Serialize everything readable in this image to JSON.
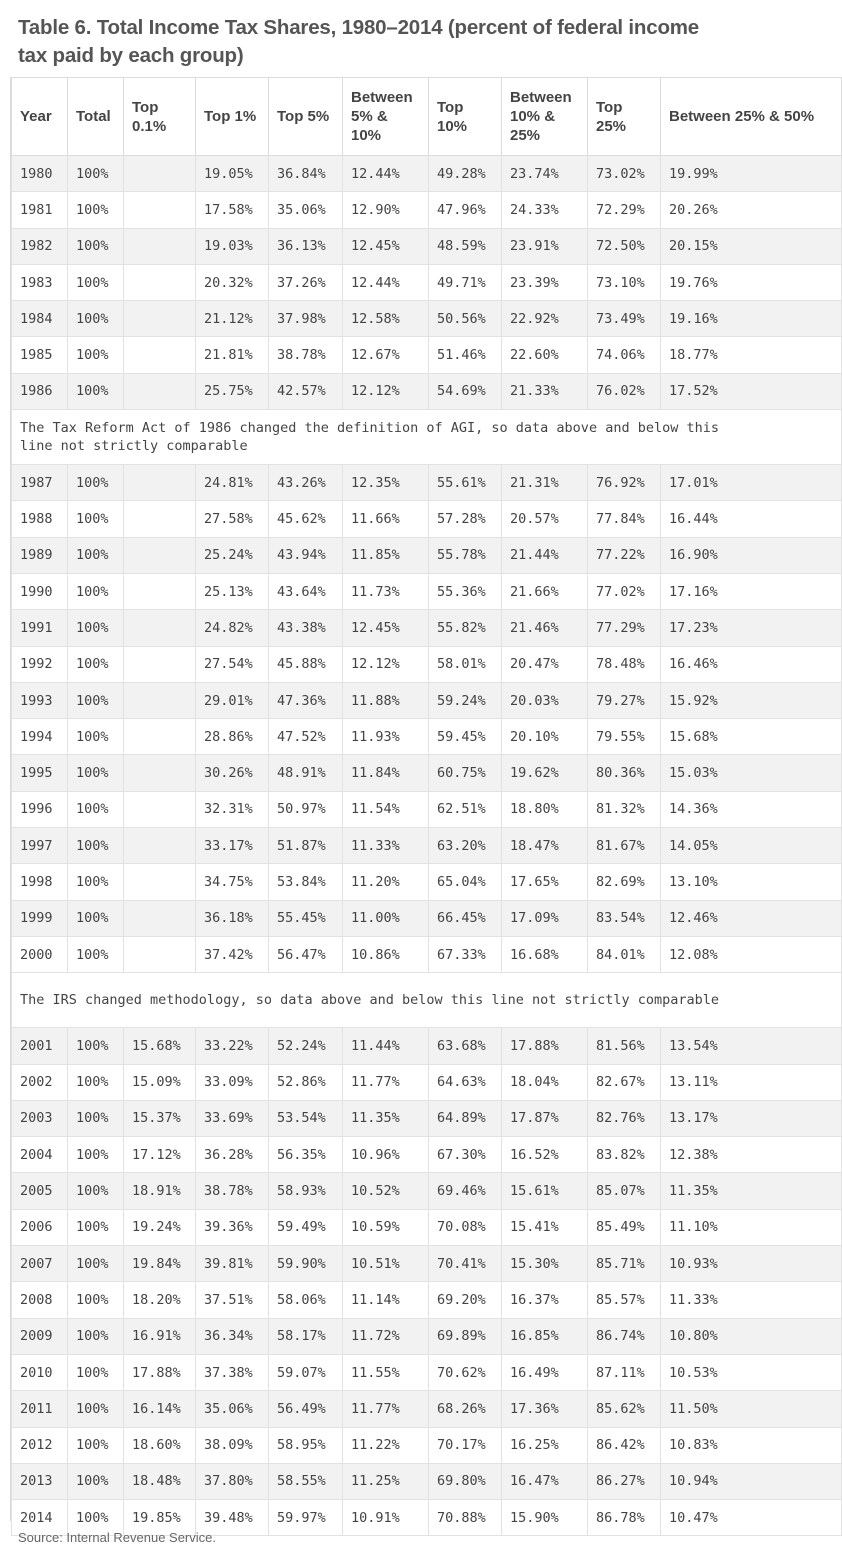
{
  "title": "Table 6. Total Income Tax Shares, 1980–2014 (percent of federal income tax paid by each group)",
  "columns": [
    "Year",
    "Total",
    "Top 0.1%",
    "Top 1%",
    "Top 5%",
    "Between 5% & 10%",
    "Top 10%",
    "Between 10% & 25%",
    "Top 25%",
    "Between 25% & 50%"
  ],
  "rows": [
    {
      "type": "data",
      "cells": [
        "1980",
        "100%",
        "",
        "19.05%",
        "36.84%",
        "12.44%",
        "49.28%",
        "23.74%",
        "73.02%",
        "19.99%"
      ]
    },
    {
      "type": "data",
      "cells": [
        "1981",
        "100%",
        "",
        "17.58%",
        "35.06%",
        "12.90%",
        "47.96%",
        "24.33%",
        "72.29%",
        "20.26%"
      ]
    },
    {
      "type": "data",
      "cells": [
        "1982",
        "100%",
        "",
        "19.03%",
        "36.13%",
        "12.45%",
        "48.59%",
        "23.91%",
        "72.50%",
        "20.15%"
      ]
    },
    {
      "type": "data",
      "cells": [
        "1983",
        "100%",
        "",
        "20.32%",
        "37.26%",
        "12.44%",
        "49.71%",
        "23.39%",
        "73.10%",
        "19.76%"
      ]
    },
    {
      "type": "data",
      "cells": [
        "1984",
        "100%",
        "",
        "21.12%",
        "37.98%",
        "12.58%",
        "50.56%",
        "22.92%",
        "73.49%",
        "19.16%"
      ]
    },
    {
      "type": "data",
      "cells": [
        "1985",
        "100%",
        "",
        "21.81%",
        "38.78%",
        "12.67%",
        "51.46%",
        "22.60%",
        "74.06%",
        "18.77%"
      ]
    },
    {
      "type": "data",
      "cells": [
        "1986",
        "100%",
        "",
        "25.75%",
        "42.57%",
        "12.12%",
        "54.69%",
        "21.33%",
        "76.02%",
        "17.52%"
      ]
    },
    {
      "type": "note",
      "text": "The Tax Reform Act of 1986 changed the definition of AGI, so data above and below this line not strictly comparable"
    },
    {
      "type": "data",
      "cells": [
        "1987",
        "100%",
        "",
        "24.81%",
        "43.26%",
        "12.35%",
        "55.61%",
        "21.31%",
        "76.92%",
        "17.01%"
      ]
    },
    {
      "type": "data",
      "cells": [
        "1988",
        "100%",
        "",
        "27.58%",
        "45.62%",
        "11.66%",
        "57.28%",
        "20.57%",
        "77.84%",
        "16.44%"
      ]
    },
    {
      "type": "data",
      "cells": [
        "1989",
        "100%",
        "",
        "25.24%",
        "43.94%",
        "11.85%",
        "55.78%",
        "21.44%",
        "77.22%",
        "16.90%"
      ]
    },
    {
      "type": "data",
      "cells": [
        "1990",
        "100%",
        "",
        "25.13%",
        "43.64%",
        "11.73%",
        "55.36%",
        "21.66%",
        "77.02%",
        "17.16%"
      ]
    },
    {
      "type": "data",
      "cells": [
        "1991",
        "100%",
        "",
        "24.82%",
        "43.38%",
        "12.45%",
        "55.82%",
        "21.46%",
        "77.29%",
        "17.23%"
      ]
    },
    {
      "type": "data",
      "cells": [
        "1992",
        "100%",
        "",
        "27.54%",
        "45.88%",
        "12.12%",
        "58.01%",
        "20.47%",
        "78.48%",
        "16.46%"
      ]
    },
    {
      "type": "data",
      "cells": [
        "1993",
        "100%",
        "",
        "29.01%",
        "47.36%",
        "11.88%",
        "59.24%",
        "20.03%",
        "79.27%",
        "15.92%"
      ]
    },
    {
      "type": "data",
      "cells": [
        "1994",
        "100%",
        "",
        "28.86%",
        "47.52%",
        "11.93%",
        "59.45%",
        "20.10%",
        "79.55%",
        "15.68%"
      ]
    },
    {
      "type": "data",
      "cells": [
        "1995",
        "100%",
        "",
        "30.26%",
        "48.91%",
        "11.84%",
        "60.75%",
        "19.62%",
        "80.36%",
        "15.03%"
      ]
    },
    {
      "type": "data",
      "cells": [
        "1996",
        "100%",
        "",
        "32.31%",
        "50.97%",
        "11.54%",
        "62.51%",
        "18.80%",
        "81.32%",
        "14.36%"
      ]
    },
    {
      "type": "data",
      "cells": [
        "1997",
        "100%",
        "",
        "33.17%",
        "51.87%",
        "11.33%",
        "63.20%",
        "18.47%",
        "81.67%",
        "14.05%"
      ]
    },
    {
      "type": "data",
      "cells": [
        "1998",
        "100%",
        "",
        "34.75%",
        "53.84%",
        "11.20%",
        "65.04%",
        "17.65%",
        "82.69%",
        "13.10%"
      ]
    },
    {
      "type": "data",
      "cells": [
        "1999",
        "100%",
        "",
        "36.18%",
        "55.45%",
        "11.00%",
        "66.45%",
        "17.09%",
        "83.54%",
        "12.46%"
      ]
    },
    {
      "type": "data",
      "cells": [
        "2000",
        "100%",
        "",
        "37.42%",
        "56.47%",
        "10.86%",
        "67.33%",
        "16.68%",
        "84.01%",
        "12.08%"
      ]
    },
    {
      "type": "note",
      "text": "The IRS changed methodology, so data above and below this line not strictly comparable"
    },
    {
      "type": "data",
      "cells": [
        "2001",
        "100%",
        "15.68%",
        "33.22%",
        "52.24%",
        "11.44%",
        "63.68%",
        "17.88%",
        "81.56%",
        "13.54%"
      ]
    },
    {
      "type": "data",
      "cells": [
        "2002",
        "100%",
        "15.09%",
        "33.09%",
        "52.86%",
        "11.77%",
        "64.63%",
        "18.04%",
        "82.67%",
        "13.11%"
      ]
    },
    {
      "type": "data",
      "cells": [
        "2003",
        "100%",
        "15.37%",
        "33.69%",
        "53.54%",
        "11.35%",
        "64.89%",
        "17.87%",
        "82.76%",
        "13.17%"
      ]
    },
    {
      "type": "data",
      "cells": [
        "2004",
        "100%",
        "17.12%",
        "36.28%",
        "56.35%",
        "10.96%",
        "67.30%",
        "16.52%",
        "83.82%",
        "12.38%"
      ]
    },
    {
      "type": "data",
      "cells": [
        "2005",
        "100%",
        "18.91%",
        "38.78%",
        "58.93%",
        "10.52%",
        "69.46%",
        "15.61%",
        "85.07%",
        "11.35%"
      ]
    },
    {
      "type": "data",
      "cells": [
        "2006",
        "100%",
        "19.24%",
        "39.36%",
        "59.49%",
        "10.59%",
        "70.08%",
        "15.41%",
        "85.49%",
        "11.10%"
      ]
    },
    {
      "type": "data",
      "cells": [
        "2007",
        "100%",
        "19.84%",
        "39.81%",
        "59.90%",
        "10.51%",
        "70.41%",
        "15.30%",
        "85.71%",
        "10.93%"
      ]
    },
    {
      "type": "data",
      "cells": [
        "2008",
        "100%",
        "18.20%",
        "37.51%",
        "58.06%",
        "11.14%",
        "69.20%",
        "16.37%",
        "85.57%",
        "11.33%"
      ]
    },
    {
      "type": "data",
      "cells": [
        "2009",
        "100%",
        "16.91%",
        "36.34%",
        "58.17%",
        "11.72%",
        "69.89%",
        "16.85%",
        "86.74%",
        "10.80%"
      ]
    },
    {
      "type": "data",
      "cells": [
        "2010",
        "100%",
        "17.88%",
        "37.38%",
        "59.07%",
        "11.55%",
        "70.62%",
        "16.49%",
        "87.11%",
        "10.53%"
      ]
    },
    {
      "type": "data",
      "cells": [
        "2011",
        "100%",
        "16.14%",
        "35.06%",
        "56.49%",
        "11.77%",
        "68.26%",
        "17.36%",
        "85.62%",
        "11.50%"
      ]
    },
    {
      "type": "data",
      "cells": [
        "2012",
        "100%",
        "18.60%",
        "38.09%",
        "58.95%",
        "11.22%",
        "70.17%",
        "16.25%",
        "86.42%",
        "10.83%"
      ]
    },
    {
      "type": "data",
      "cells": [
        "2013",
        "100%",
        "18.48%",
        "37.80%",
        "58.55%",
        "11.25%",
        "69.80%",
        "16.47%",
        "86.27%",
        "10.94%"
      ]
    },
    {
      "type": "data",
      "cells": [
        "2014",
        "100%",
        "19.85%",
        "39.48%",
        "59.97%",
        "10.91%",
        "70.88%",
        "15.90%",
        "86.78%",
        "10.47%"
      ]
    }
  ],
  "source": "Source: Internal Revenue Service."
}
